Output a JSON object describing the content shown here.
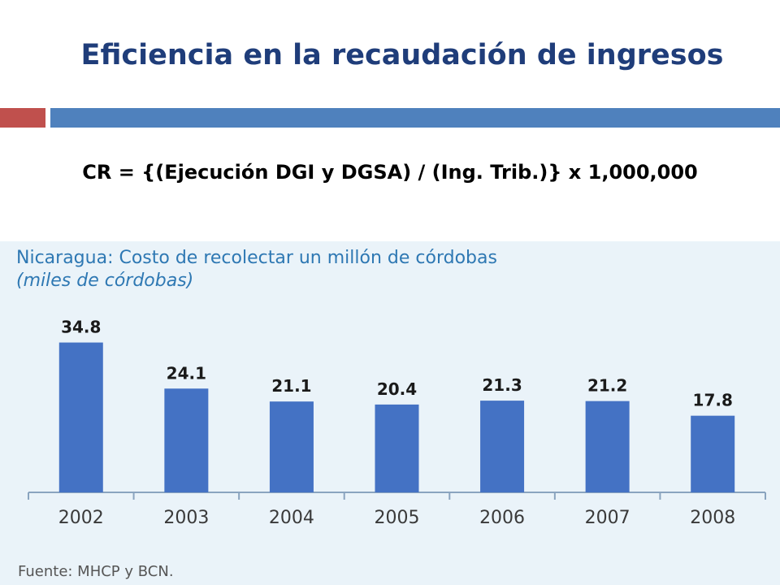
{
  "slide": {
    "title": "Eficiencia en la recaudación de ingresos",
    "formula": "CR = {(Ejecución DGI y DGSA) / (Ing. Trib.)} x 1,000,000"
  },
  "colors": {
    "title": "#1f3d7a",
    "accent_red": "#c0504d",
    "accent_blue": "#4f81bd",
    "bar": "#4472c4",
    "chart_text": "#2e78b3",
    "panel_bg": "#eaf3f9"
  },
  "chart_data": {
    "type": "bar",
    "title": "Nicaragua: Costo de recolectar un millón de córdobas",
    "subtitle": "(miles de córdobas)",
    "categories": [
      "2002",
      "2003",
      "2004",
      "2005",
      "2006",
      "2007",
      "2008"
    ],
    "values": [
      34.8,
      24.1,
      21.1,
      20.4,
      21.3,
      21.2,
      17.8
    ],
    "data_labels": [
      "34.8",
      "24.1",
      "21.1",
      "20.4",
      "21.3",
      "21.2",
      "17.8"
    ],
    "xlabel": "",
    "ylabel": "",
    "grid": false,
    "source": "Fuente: MHCP y BCN."
  }
}
